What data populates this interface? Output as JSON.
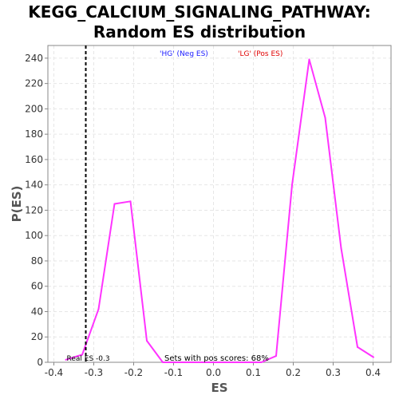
{
  "title_line1": "KEGG_CALCIUM_SIGNALING_PATHWAY:",
  "title_line2": "Random ES distribution",
  "chart_data": {
    "type": "line",
    "xlabel": "ES",
    "ylabel": "P(ES)",
    "xlim": [
      -0.415,
      0.445
    ],
    "ylim": [
      0,
      250
    ],
    "x_ticks": [
      -0.4,
      -0.3,
      -0.2,
      -0.1,
      0.0,
      0.1,
      0.2,
      0.3,
      0.4
    ],
    "x_tick_labels": [
      "-0.4",
      "-0.3",
      "-0.2",
      "-0.1",
      "0.0",
      "0.1",
      "0.2",
      "0.3",
      "0.4"
    ],
    "y_ticks": [
      0,
      20,
      40,
      60,
      80,
      100,
      120,
      140,
      160,
      180,
      200,
      220,
      240
    ],
    "y_tick_labels": [
      "0",
      "20",
      "40",
      "60",
      "80",
      "100",
      "120",
      "140",
      "160",
      "180",
      "200",
      "220",
      "240"
    ],
    "grid": true,
    "series": [
      {
        "color": "#ff33ff",
        "x": [
          -0.37,
          -0.34,
          -0.329,
          -0.288,
          -0.248,
          -0.208,
          -0.167,
          -0.127,
          -0.085,
          -0.045,
          0.0,
          0.04,
          0.08,
          0.12,
          0.157,
          0.197,
          0.24,
          0.28,
          0.32,
          0.361,
          0.401
        ],
        "y": [
          2,
          5,
          6,
          42,
          125,
          127,
          17,
          0,
          0,
          0,
          0,
          0,
          0,
          0,
          5,
          140,
          239,
          193,
          90,
          12,
          4
        ]
      }
    ],
    "real_es": {
      "value": -0.32,
      "label": "Real ES -0.3",
      "color": "#000000"
    },
    "annotations": {
      "neg": {
        "text": "'HG' (Neg ES)",
        "color": "#1a1aff"
      },
      "pos": {
        "text": "'LG' (Pos ES)",
        "color": "#e00000"
      },
      "pos_scores": {
        "text": "Sets with pos scores: 68%",
        "color": "#000000"
      }
    }
  }
}
